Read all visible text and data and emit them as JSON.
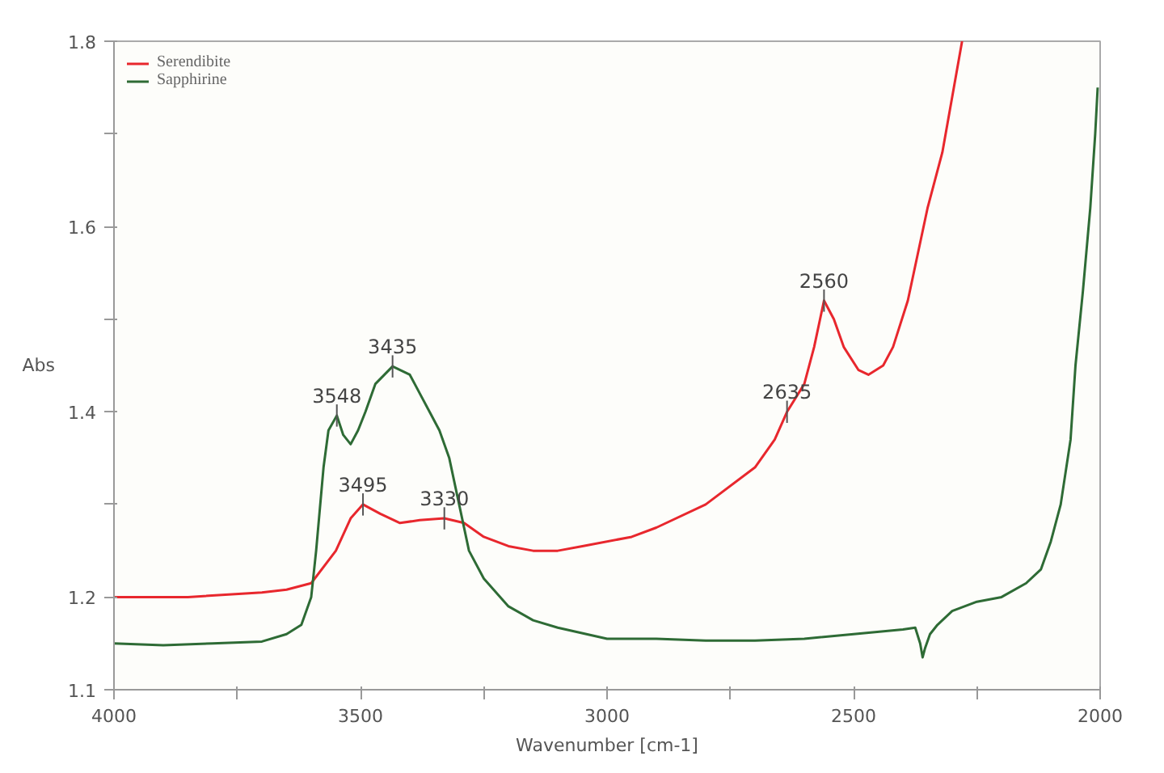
{
  "chart_data": {
    "type": "line",
    "xlabel": "Wavenumber [cm-1]",
    "ylabel": "Abs",
    "xlim": [
      4000,
      2000
    ],
    "ylim": [
      1.1,
      1.8
    ],
    "xticks": [
      4000,
      {
        "value": 3750,
        "label": null
      },
      3500,
      {
        "value": 3250,
        "label": null
      },
      3000,
      {
        "value": 2750,
        "label": null
      },
      2500,
      {
        "value": 2250,
        "label": null
      },
      2000
    ],
    "yticks": [
      1.1,
      1.2,
      {
        "value": 1.3,
        "label": null
      },
      1.4,
      {
        "value": 1.5,
        "label": null
      },
      1.6,
      {
        "value": 1.7,
        "label": null
      },
      1.8
    ],
    "grid": false,
    "legend": "top left",
    "line_style": "solid",
    "marker": "none",
    "series": [
      {
        "name": "Serendibite",
        "color": "#e8272d",
        "x": [
          4000,
          3850,
          3700,
          3650,
          3600,
          3550,
          3520,
          3495,
          3460,
          3420,
          3380,
          3330,
          3290,
          3250,
          3200,
          3150,
          3100,
          3050,
          2950,
          2900,
          2800,
          2700,
          2660,
          2635,
          2600,
          2580,
          2560,
          2540,
          2520,
          2490,
          2470,
          2440,
          2420,
          2390,
          2370,
          2350,
          2320,
          2300,
          2280
        ],
        "values": [
          1.2,
          1.2,
          1.205,
          1.208,
          1.215,
          1.25,
          1.285,
          1.3,
          1.29,
          1.28,
          1.283,
          1.285,
          1.28,
          1.265,
          1.255,
          1.25,
          1.25,
          1.255,
          1.265,
          1.275,
          1.3,
          1.34,
          1.37,
          1.4,
          1.43,
          1.47,
          1.52,
          1.5,
          1.47,
          1.445,
          1.44,
          1.45,
          1.47,
          1.52,
          1.57,
          1.62,
          1.68,
          1.74,
          1.8
        ]
      },
      {
        "name": "Sapphirine",
        "color": "#2e6b35",
        "x": [
          4000,
          3900,
          3800,
          3700,
          3650,
          3620,
          3600,
          3590,
          3575,
          3565,
          3548,
          3535,
          3520,
          3505,
          3490,
          3470,
          3435,
          3400,
          3380,
          3360,
          3340,
          3320,
          3300,
          3280,
          3250,
          3200,
          3150,
          3100,
          3000,
          2900,
          2800,
          2700,
          2600,
          2500,
          2400,
          2375,
          2365,
          2360,
          2355,
          2345,
          2330,
          2300,
          2250,
          2200,
          2150,
          2120,
          2100,
          2080,
          2060,
          2050,
          2035,
          2020,
          2010,
          2005
        ],
        "values": [
          1.15,
          1.148,
          1.15,
          1.152,
          1.16,
          1.17,
          1.2,
          1.25,
          1.34,
          1.38,
          1.396,
          1.375,
          1.365,
          1.38,
          1.4,
          1.43,
          1.449,
          1.44,
          1.42,
          1.4,
          1.38,
          1.35,
          1.3,
          1.25,
          1.22,
          1.19,
          1.175,
          1.167,
          1.155,
          1.155,
          1.153,
          1.153,
          1.155,
          1.16,
          1.165,
          1.167,
          1.15,
          1.135,
          1.145,
          1.16,
          1.17,
          1.185,
          1.195,
          1.2,
          1.215,
          1.23,
          1.26,
          1.3,
          1.37,
          1.45,
          1.53,
          1.62,
          1.7,
          1.75
        ]
      }
    ],
    "annotations": [
      {
        "text": "3548",
        "x": 3548,
        "y": 1.396
      },
      {
        "text": "3435",
        "x": 3435,
        "y": 1.449
      },
      {
        "text": "3495",
        "x": 3495,
        "y": 1.3
      },
      {
        "text": "3330",
        "x": 3330,
        "y": 1.285
      },
      {
        "text": "2635",
        "x": 2635,
        "y": 1.4
      },
      {
        "text": "2560",
        "x": 2560,
        "y": 1.52
      }
    ]
  }
}
